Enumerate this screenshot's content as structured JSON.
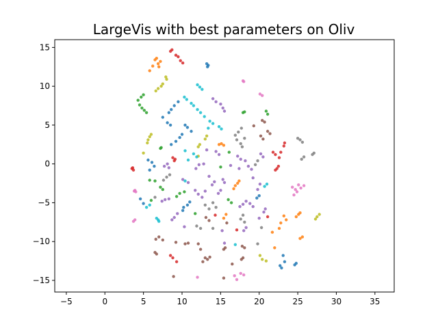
{
  "chart_data": {
    "type": "scatter",
    "title": "LargeVis with best parameters on Oliv",
    "xlabel": "",
    "ylabel": "",
    "xlim": [
      -6.5,
      37.5
    ],
    "ylim": [
      -16.5,
      16.0
    ],
    "xticks": [
      -5,
      0,
      5,
      10,
      15,
      20,
      25,
      30,
      35
    ],
    "yticks": [
      -15,
      -10,
      -5,
      0,
      5,
      10,
      15
    ],
    "grid": false,
    "palette": {
      "blue": "#1f77b4",
      "orange": "#ff7f0e",
      "green": "#2ca02c",
      "red": "#d62728",
      "purple": "#9467bd",
      "brown": "#8c564b",
      "pink": "#e377c2",
      "gray": "#7f7f7f",
      "olive": "#bcbd22",
      "cyan": "#17becf"
    },
    "points": [
      [
        8.7,
        14.7,
        "red"
      ],
      [
        8.5,
        14.5,
        "red"
      ],
      [
        9.2,
        14.0,
        "red"
      ],
      [
        9.5,
        13.8,
        "red"
      ],
      [
        9.8,
        13.3,
        "red"
      ],
      [
        10.1,
        13.0,
        "red"
      ],
      [
        6.7,
        13.6,
        "orange"
      ],
      [
        6.5,
        13.4,
        "orange"
      ],
      [
        7.2,
        13.2,
        "orange"
      ],
      [
        6.9,
        12.9,
        "orange"
      ],
      [
        6.2,
        12.6,
        "orange"
      ],
      [
        7.0,
        12.5,
        "orange"
      ],
      [
        5.8,
        12.0,
        "orange"
      ],
      [
        13.2,
        12.9,
        "blue"
      ],
      [
        13.4,
        12.7,
        "blue"
      ],
      [
        13.3,
        12.5,
        "blue"
      ],
      [
        7.5,
        10.3,
        "olive"
      ],
      [
        7.3,
        10.0,
        "olive"
      ],
      [
        6.9,
        9.7,
        "olive"
      ],
      [
        6.6,
        9.4,
        "olive"
      ],
      [
        8.0,
        10.9,
        "olive"
      ],
      [
        7.9,
        11.2,
        "olive"
      ],
      [
        12.0,
        10.2,
        "cyan"
      ],
      [
        12.3,
        9.9,
        "cyan"
      ],
      [
        12.6,
        9.6,
        "cyan"
      ],
      [
        17.9,
        10.7,
        "pink"
      ],
      [
        18.0,
        10.6,
        "pink"
      ],
      [
        20.1,
        9.0,
        "pink"
      ],
      [
        20.4,
        8.8,
        "pink"
      ],
      [
        5.0,
        8.9,
        "green"
      ],
      [
        4.7,
        8.6,
        "green"
      ],
      [
        4.3,
        8.2,
        "green"
      ],
      [
        4.5,
        7.6,
        "green"
      ],
      [
        4.8,
        7.2,
        "green"
      ],
      [
        5.1,
        6.9,
        "green"
      ],
      [
        5.4,
        6.6,
        "green"
      ],
      [
        10.3,
        8.6,
        "cyan"
      ],
      [
        10.6,
        8.3,
        "cyan"
      ],
      [
        11.2,
        7.8,
        "cyan"
      ],
      [
        11.5,
        7.5,
        "cyan"
      ],
      [
        12.0,
        7.0,
        "cyan"
      ],
      [
        12.4,
        6.6,
        "cyan"
      ],
      [
        12.9,
        6.1,
        "cyan"
      ],
      [
        9.5,
        8.0,
        "blue"
      ],
      [
        9.0,
        7.5,
        "blue"
      ],
      [
        8.6,
        7.0,
        "blue"
      ],
      [
        8.3,
        6.6,
        "blue"
      ],
      [
        7.5,
        6.0,
        "blue"
      ],
      [
        8.1,
        5.3,
        "blue"
      ],
      [
        8.5,
        5.0,
        "blue"
      ],
      [
        14.0,
        8.4,
        "purple"
      ],
      [
        14.4,
        8.0,
        "purple"
      ],
      [
        15.0,
        7.7,
        "purple"
      ],
      [
        15.3,
        7.2,
        "purple"
      ],
      [
        15.5,
        6.8,
        "purple"
      ],
      [
        17.9,
        6.6,
        "green"
      ],
      [
        18.1,
        6.7,
        "green"
      ],
      [
        20.9,
        6.8,
        "green"
      ],
      [
        21.1,
        6.4,
        "green"
      ],
      [
        20.4,
        5.6,
        "brown"
      ],
      [
        20.7,
        5.4,
        "brown"
      ],
      [
        19.3,
        4.9,
        "brown"
      ],
      [
        21.1,
        4.2,
        "brown"
      ],
      [
        21.4,
        3.9,
        "brown"
      ],
      [
        20.2,
        3.6,
        "brown"
      ],
      [
        20.5,
        3.2,
        "brown"
      ],
      [
        17.7,
        4.6,
        "gray"
      ],
      [
        17.3,
        4.1,
        "gray"
      ],
      [
        16.9,
        3.7,
        "gray"
      ],
      [
        18.1,
        3.3,
        "gray"
      ],
      [
        17.1,
        3.1,
        "gray"
      ],
      [
        17.6,
        2.6,
        "gray"
      ],
      [
        17.8,
        2.2,
        "gray"
      ],
      [
        6.0,
        3.8,
        "olive"
      ],
      [
        5.8,
        3.5,
        "olive"
      ],
      [
        5.6,
        3.1,
        "olive"
      ],
      [
        5.5,
        2.7,
        "olive"
      ],
      [
        5.0,
        1.4,
        "olive"
      ],
      [
        10.4,
        5.0,
        "blue"
      ],
      [
        10.7,
        4.7,
        "blue"
      ],
      [
        11.2,
        4.2,
        "blue"
      ],
      [
        10.0,
        3.8,
        "blue"
      ],
      [
        9.7,
        3.4,
        "blue"
      ],
      [
        9.2,
        2.9,
        "blue"
      ],
      [
        8.6,
        2.5,
        "blue"
      ],
      [
        13.6,
        5.5,
        "cyan"
      ],
      [
        14.0,
        5.2,
        "cyan"
      ],
      [
        13.4,
        4.6,
        "cyan"
      ],
      [
        14.8,
        4.8,
        "cyan"
      ],
      [
        15.1,
        4.5,
        "cyan"
      ],
      [
        13.0,
        3.2,
        "olive"
      ],
      [
        13.2,
        3.6,
        "olive"
      ],
      [
        12.1,
        2.2,
        "olive"
      ],
      [
        12.3,
        2.5,
        "olive"
      ],
      [
        12.1,
        1.0,
        "olive"
      ],
      [
        15.1,
        2.6,
        "orange"
      ],
      [
        14.8,
        2.5,
        "orange"
      ],
      [
        15.4,
        2.4,
        "orange"
      ],
      [
        7.3,
        2.1,
        "green"
      ],
      [
        7.2,
        2.0,
        "green"
      ],
      [
        10.4,
        1.7,
        "cyan"
      ],
      [
        11.5,
        1.3,
        "cyan"
      ],
      [
        11.9,
        0.9,
        "cyan"
      ],
      [
        10.8,
        0.5,
        "cyan"
      ],
      [
        13.2,
        1.8,
        "purple"
      ],
      [
        14.4,
        1.6,
        "purple"
      ],
      [
        14.8,
        1.2,
        "purple"
      ],
      [
        16.1,
        1.5,
        "green"
      ],
      [
        17.2,
        1.0,
        "purple"
      ],
      [
        17.6,
        0.6,
        "purple"
      ],
      [
        18.2,
        0.4,
        "purple"
      ],
      [
        20.2,
        1.3,
        "purple"
      ],
      [
        20.5,
        0.9,
        "purple"
      ],
      [
        9.1,
        0.6,
        "red"
      ],
      [
        9.0,
        0.4,
        "red"
      ],
      [
        8.8,
        0.8,
        "red"
      ],
      [
        5.6,
        0.5,
        "blue"
      ],
      [
        6.1,
        0.2,
        "blue"
      ],
      [
        6.4,
        -0.3,
        "blue"
      ],
      [
        5.8,
        -0.8,
        "blue"
      ],
      [
        3.5,
        -0.6,
        "red"
      ],
      [
        3.6,
        -0.5,
        "red"
      ],
      [
        3.7,
        -0.8,
        "red"
      ],
      [
        8.1,
        0.0,
        "purple"
      ],
      [
        7.7,
        -0.3,
        "purple"
      ],
      [
        8.3,
        -0.5,
        "purple"
      ],
      [
        11.8,
        -0.6,
        "purple"
      ],
      [
        12.2,
        -0.1,
        "purple"
      ],
      [
        12.8,
        0.0,
        "purple"
      ],
      [
        15.0,
        -0.4,
        "green"
      ],
      [
        16.3,
        -0.2,
        "purple"
      ],
      [
        17.4,
        -0.6,
        "purple"
      ],
      [
        18.6,
        -0.3,
        "purple"
      ],
      [
        19.0,
        -0.7,
        "purple"
      ],
      [
        19.5,
        -0.1,
        "gray"
      ],
      [
        19.8,
        0.4,
        "gray"
      ],
      [
        21.8,
        1.5,
        "red"
      ],
      [
        22.1,
        1.2,
        "red"
      ],
      [
        22.8,
        1.5,
        "red"
      ],
      [
        22.6,
        0.8,
        "red"
      ],
      [
        23.2,
        2.3,
        "red"
      ],
      [
        23.3,
        2.7,
        "red"
      ],
      [
        22.5,
        -0.3,
        "red"
      ],
      [
        22.3,
        -0.6,
        "red"
      ],
      [
        22.1,
        -0.8,
        "red"
      ],
      [
        25.0,
        3.3,
        "gray"
      ],
      [
        25.3,
        3.1,
        "gray"
      ],
      [
        25.6,
        2.8,
        "gray"
      ],
      [
        25.8,
        0.9,
        "gray"
      ],
      [
        25.5,
        0.6,
        "gray"
      ],
      [
        26.9,
        1.2,
        "gray"
      ],
      [
        27.1,
        1.4,
        "gray"
      ],
      [
        8.4,
        -1.4,
        "gray"
      ],
      [
        8.0,
        -1.7,
        "gray"
      ],
      [
        7.6,
        -2.1,
        "gray"
      ],
      [
        7.2,
        -3.0,
        "green"
      ],
      [
        7.5,
        -3.3,
        "green"
      ],
      [
        5.8,
        -2.1,
        "green"
      ],
      [
        6.5,
        -2.2,
        "green"
      ],
      [
        10.1,
        -2.0,
        "purple"
      ],
      [
        10.4,
        -2.2,
        "cyan"
      ],
      [
        10.8,
        -2.4,
        "purple"
      ],
      [
        13.5,
        -1.6,
        "purple"
      ],
      [
        14.2,
        -2.3,
        "purple"
      ],
      [
        13.9,
        -2.7,
        "purple"
      ],
      [
        15.3,
        -2.0,
        "purple"
      ],
      [
        15.5,
        -2.4,
        "purple"
      ],
      [
        16.9,
        -2.8,
        "orange"
      ],
      [
        17.2,
        -2.5,
        "orange"
      ],
      [
        17.4,
        -2.2,
        "orange"
      ],
      [
        16.7,
        -3.2,
        "orange"
      ],
      [
        19.2,
        -1.8,
        "purple"
      ],
      [
        20.1,
        -2.6,
        "purple"
      ],
      [
        19.8,
        -3.3,
        "purple"
      ],
      [
        20.7,
        -2.9,
        "cyan"
      ],
      [
        21.0,
        -2.6,
        "cyan"
      ],
      [
        3.9,
        -3.4,
        "pink"
      ],
      [
        4.0,
        -3.6,
        "pink"
      ],
      [
        3.8,
        -3.5,
        "pink"
      ],
      [
        10.3,
        -3.6,
        "green"
      ],
      [
        9.7,
        -3.8,
        "green"
      ],
      [
        9.3,
        -4.2,
        "green"
      ],
      [
        11.7,
        -3.4,
        "purple"
      ],
      [
        12.1,
        -3.9,
        "purple"
      ],
      [
        13.0,
        -3.5,
        "purple"
      ],
      [
        12.6,
        -4.3,
        "purple"
      ],
      [
        15.0,
        -3.4,
        "purple"
      ],
      [
        14.7,
        -3.8,
        "purple"
      ],
      [
        24.3,
        -3.0,
        "pink"
      ],
      [
        24.7,
        -3.3,
        "pink"
      ],
      [
        24.9,
        -3.6,
        "pink"
      ],
      [
        25.4,
        -3.1,
        "pink"
      ],
      [
        25.8,
        -2.8,
        "pink"
      ],
      [
        24.5,
        -4.0,
        "pink"
      ],
      [
        25.1,
        -2.7,
        "pink"
      ],
      [
        6.5,
        -4.3,
        "gray"
      ],
      [
        6.0,
        -4.7,
        "green"
      ],
      [
        4.6,
        -4.5,
        "blue"
      ],
      [
        5.0,
        -5.1,
        "blue"
      ],
      [
        5.4,
        -5.6,
        "cyan"
      ],
      [
        5.8,
        -5.3,
        "cyan"
      ],
      [
        7.8,
        -4.6,
        "purple"
      ],
      [
        8.3,
        -4.5,
        "purple"
      ],
      [
        7.4,
        -4.8,
        "purple"
      ],
      [
        11.0,
        -4.9,
        "blue"
      ],
      [
        10.7,
        -5.3,
        "blue"
      ],
      [
        10.2,
        -5.6,
        "blue"
      ],
      [
        10.1,
        -6.0,
        "blue"
      ],
      [
        13.0,
        -5.3,
        "gray"
      ],
      [
        13.5,
        -5.8,
        "gray"
      ],
      [
        14.0,
        -5.0,
        "gray"
      ],
      [
        14.4,
        -5.6,
        "gray"
      ],
      [
        16.0,
        -4.6,
        "green"
      ],
      [
        16.4,
        -5.0,
        "green"
      ],
      [
        17.5,
        -5.5,
        "purple"
      ],
      [
        17.9,
        -5.2,
        "purple"
      ],
      [
        18.3,
        -4.8,
        "purple"
      ],
      [
        18.8,
        -5.1,
        "purple"
      ],
      [
        19.2,
        -5.5,
        "purple"
      ],
      [
        19.7,
        -4.4,
        "blue"
      ],
      [
        20.0,
        -4.1,
        "blue"
      ],
      [
        20.8,
        -5.8,
        "purple"
      ],
      [
        9.4,
        -6.4,
        "purple"
      ],
      [
        9.0,
        -6.9,
        "purple"
      ],
      [
        8.7,
        -7.2,
        "purple"
      ],
      [
        11.7,
        -6.4,
        "green"
      ],
      [
        6.7,
        -7.0,
        "cyan"
      ],
      [
        6.9,
        -7.2,
        "cyan"
      ],
      [
        7.0,
        -7.4,
        "cyan"
      ],
      [
        3.7,
        -7.4,
        "pink"
      ],
      [
        3.9,
        -7.2,
        "pink"
      ],
      [
        13.1,
        -6.9,
        "brown"
      ],
      [
        13.5,
        -7.3,
        "brown"
      ],
      [
        14.3,
        -6.6,
        "red"
      ],
      [
        15.7,
        -6.5,
        "orange"
      ],
      [
        15.4,
        -7.0,
        "orange"
      ],
      [
        15.8,
        -7.6,
        "brown"
      ],
      [
        17.9,
        -6.6,
        "gray"
      ],
      [
        17.6,
        -7.1,
        "gray"
      ],
      [
        18.1,
        -7.5,
        "gray"
      ],
      [
        20.6,
        -6.2,
        "purple"
      ],
      [
        20.0,
        -7.0,
        "purple"
      ],
      [
        21.1,
        -6.8,
        "red"
      ],
      [
        23.2,
        -6.7,
        "orange"
      ],
      [
        23.5,
        -7.2,
        "orange"
      ],
      [
        22.8,
        -7.6,
        "orange"
      ],
      [
        22.6,
        -8.3,
        "orange"
      ],
      [
        24.8,
        -6.8,
        "orange"
      ],
      [
        25.1,
        -6.5,
        "orange"
      ],
      [
        25.3,
        -6.3,
        "orange"
      ],
      [
        27.3,
        -7.1,
        "olive"
      ],
      [
        27.5,
        -6.8,
        "olive"
      ],
      [
        27.8,
        -6.5,
        "olive"
      ],
      [
        10.3,
        -8.1,
        "purple"
      ],
      [
        11.9,
        -8.0,
        "gray"
      ],
      [
        12.4,
        -8.3,
        "gray"
      ],
      [
        14.0,
        -8.3,
        "gray"
      ],
      [
        15.2,
        -8.6,
        "purple"
      ],
      [
        17.1,
        -8.5,
        "red"
      ],
      [
        18.0,
        -8.6,
        "purple"
      ],
      [
        18.3,
        -8.2,
        "purple"
      ],
      [
        20.3,
        -8.2,
        "gray"
      ],
      [
        21.7,
        -8.8,
        "orange"
      ],
      [
        7.0,
        -9.4,
        "brown"
      ],
      [
        6.6,
        -9.7,
        "brown"
      ],
      [
        7.5,
        -9.8,
        "brown"
      ],
      [
        9.2,
        -10.1,
        "brown"
      ],
      [
        10.4,
        -10.3,
        "brown"
      ],
      [
        10.8,
        -10.2,
        "brown"
      ],
      [
        12.1,
        -10.3,
        "brown"
      ],
      [
        12.4,
        -11.0,
        "brown"
      ],
      [
        15.5,
        -10.2,
        "purple"
      ],
      [
        16.9,
        -10.4,
        "cyan"
      ],
      [
        17.8,
        -10.6,
        "brown"
      ],
      [
        18.1,
        -10.8,
        "brown"
      ],
      [
        19.8,
        -10.3,
        "gray"
      ],
      [
        22.0,
        -10.8,
        "orange"
      ],
      [
        25.3,
        -9.6,
        "orange"
      ],
      [
        25.6,
        -9.4,
        "orange"
      ],
      [
        6.5,
        -11.4,
        "brown"
      ],
      [
        6.7,
        -11.6,
        "brown"
      ],
      [
        8.5,
        -11.8,
        "red"
      ],
      [
        8.8,
        -12.1,
        "red"
      ],
      [
        9.3,
        -12.6,
        "red"
      ],
      [
        13.0,
        -12.1,
        "brown"
      ],
      [
        12.7,
        -12.6,
        "brown"
      ],
      [
        13.3,
        -12.3,
        "brown"
      ],
      [
        13.6,
        -12.0,
        "brown"
      ],
      [
        15.4,
        -11.0,
        "brown"
      ],
      [
        15.6,
        -10.8,
        "brown"
      ],
      [
        17.7,
        -12.3,
        "brown"
      ],
      [
        17.9,
        -12.1,
        "brown"
      ],
      [
        16.5,
        -12.9,
        "brown"
      ],
      [
        20.1,
        -11.8,
        "olive"
      ],
      [
        20.4,
        -12.3,
        "olive"
      ],
      [
        20.9,
        -12.5,
        "olive"
      ],
      [
        22.7,
        -13.1,
        "blue"
      ],
      [
        22.9,
        -13.4,
        "blue"
      ],
      [
        23.1,
        -11.8,
        "blue"
      ],
      [
        23.3,
        -12.6,
        "blue"
      ],
      [
        24.6,
        -13.0,
        "blue"
      ],
      [
        24.8,
        -12.8,
        "blue"
      ],
      [
        8.9,
        -14.5,
        "brown"
      ],
      [
        12.0,
        -14.6,
        "pink"
      ],
      [
        15.4,
        -14.7,
        "brown"
      ],
      [
        16.8,
        -14.4,
        "pink"
      ],
      [
        17.1,
        -14.9,
        "pink"
      ],
      [
        17.6,
        -14.1,
        "pink"
      ],
      [
        18.0,
        -14.3,
        "pink"
      ]
    ]
  }
}
